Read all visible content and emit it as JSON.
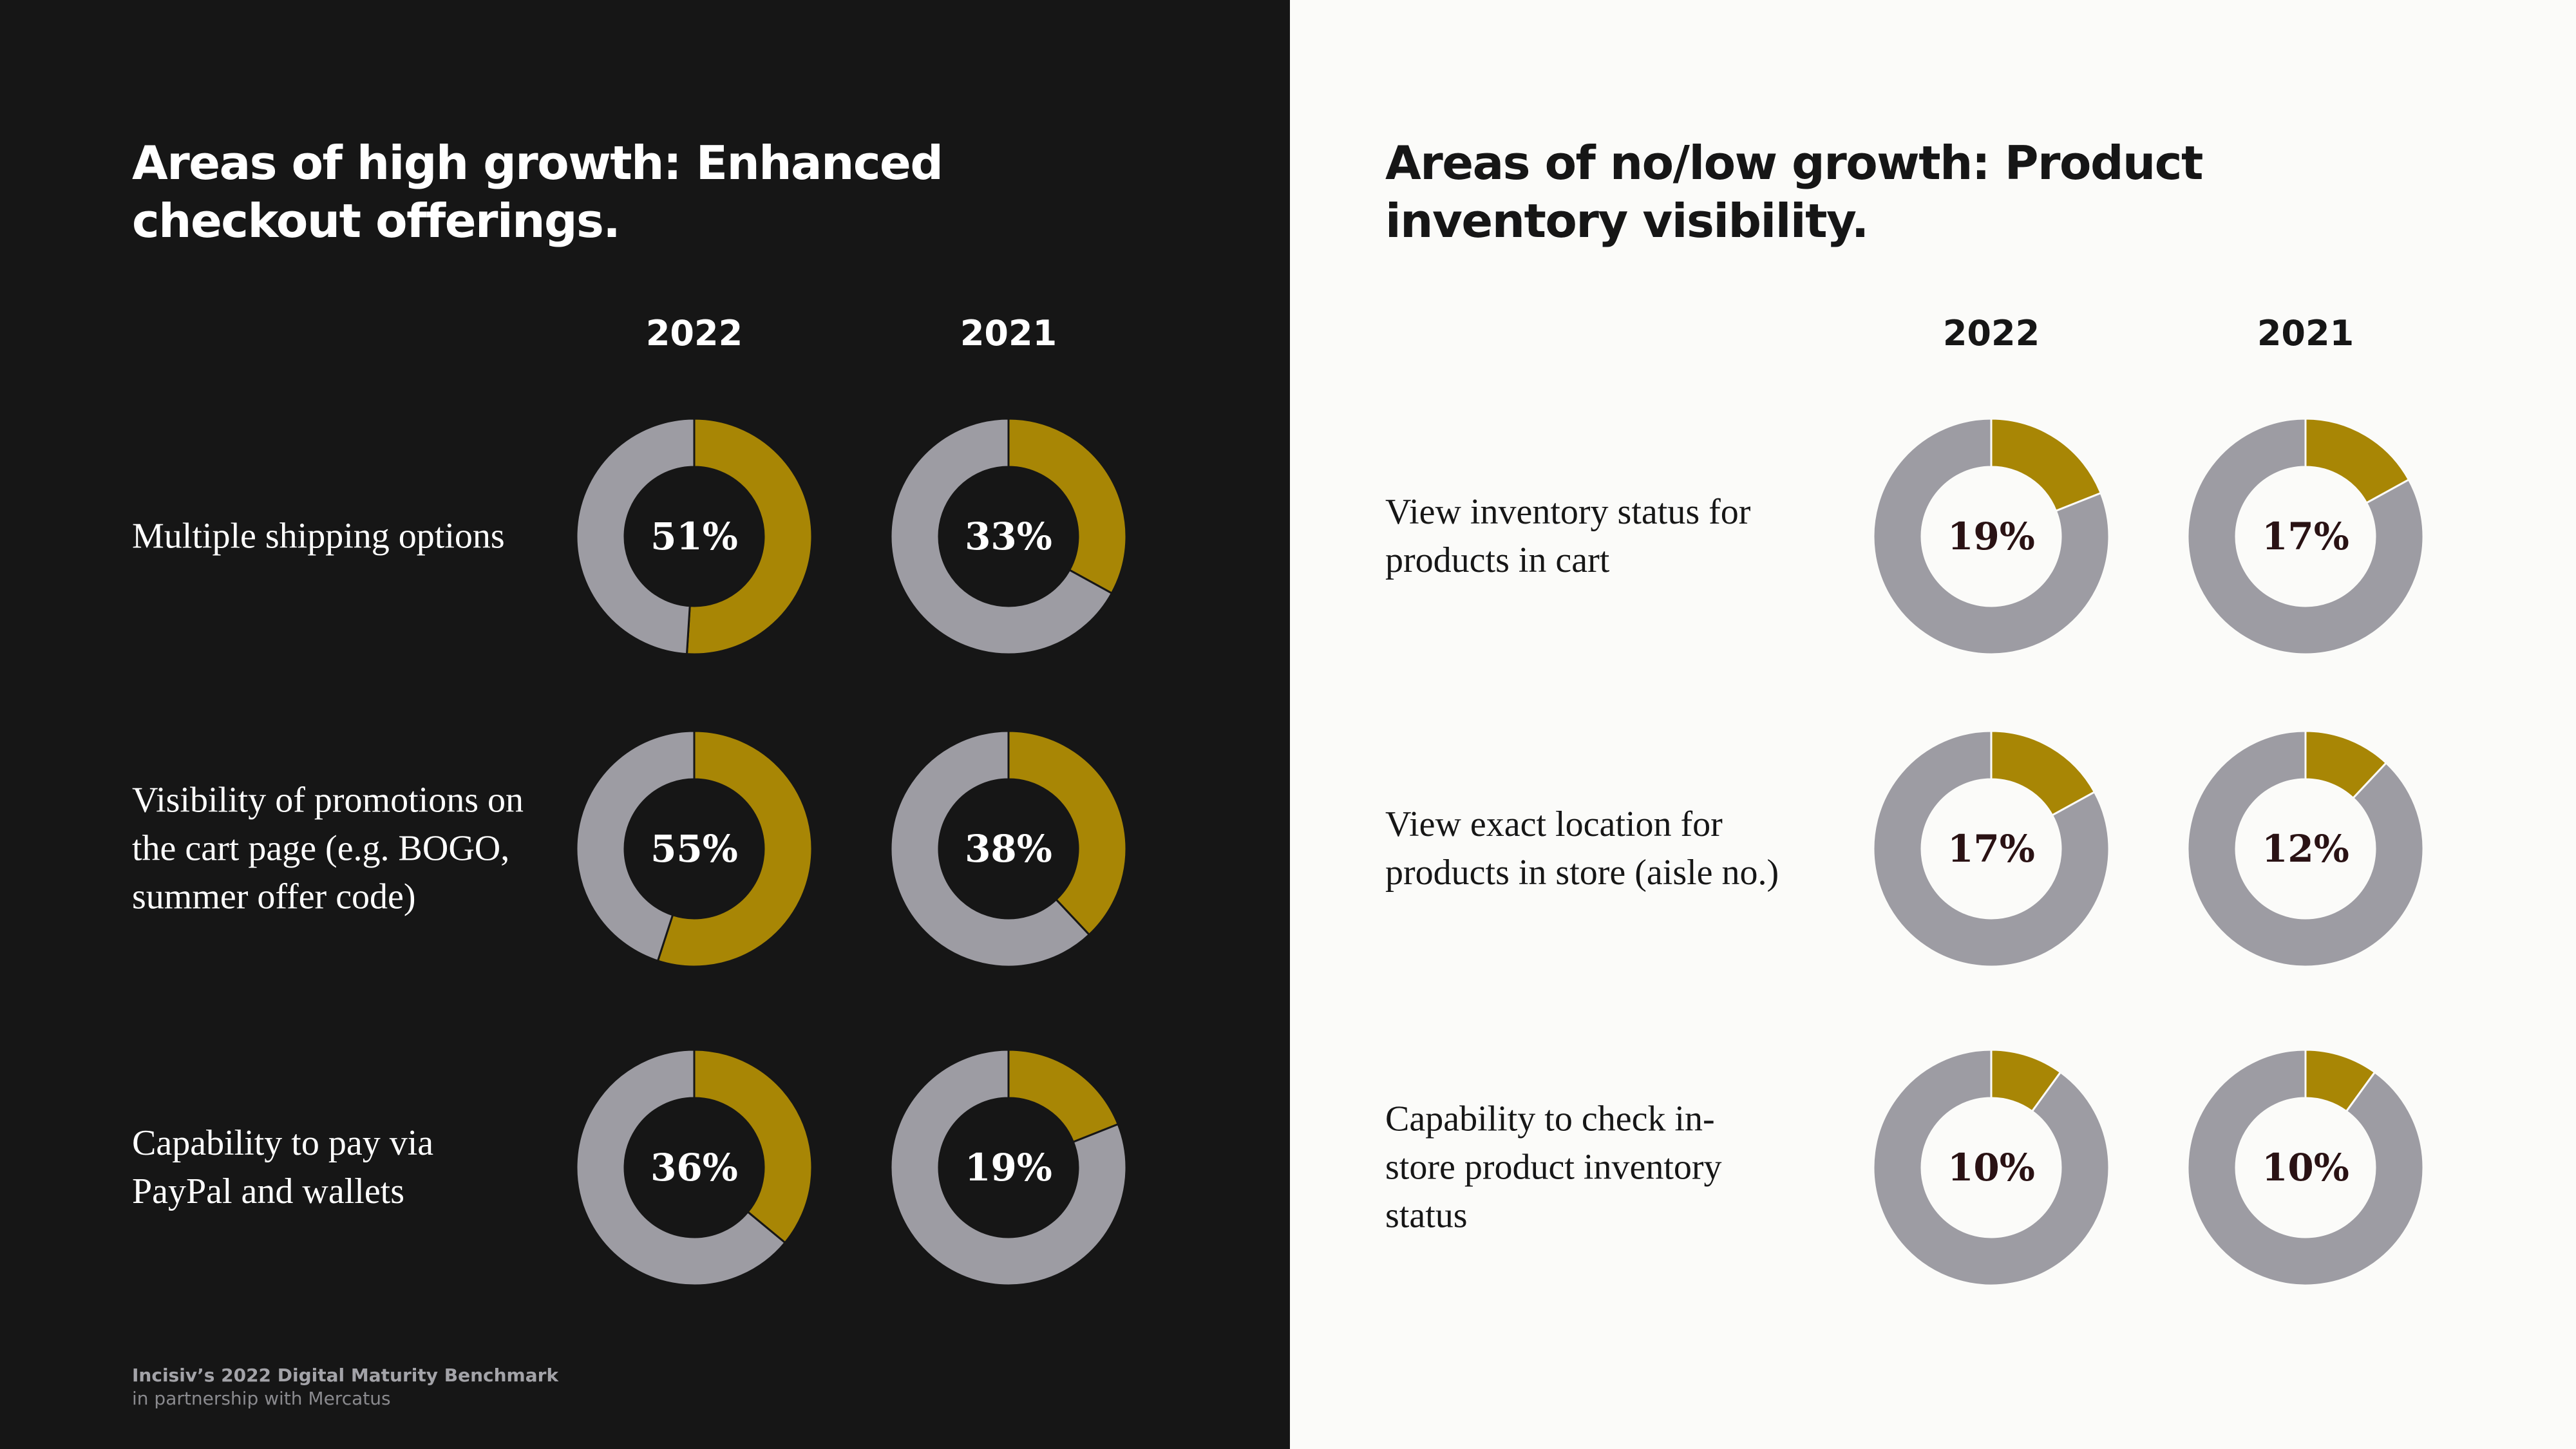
{
  "colors": {
    "accent": "#a88605",
    "ring_gray": "#9d9ca3",
    "left_background": "#161616",
    "right_background": "#fbfbf9"
  },
  "footer": {
    "title": "Incisiv’s 2022 Digital Maturity Benchmark",
    "subtitle": "in partnership with Mercatus"
  },
  "chart_data": [
    {
      "type": "donut",
      "title": "Areas of high growth: Enhanced checkout offerings.",
      "series_names": [
        "2022",
        "2021"
      ],
      "categories": [
        "Multiple shipping options",
        "Visibility of promotions on the cart page (e.g. BOGO, summer offer code)",
        "Capability to pay via PayPal and wallets"
      ],
      "values": {
        "2022": [
          51,
          55,
          36
        ],
        "2021": [
          33,
          38,
          19
        ]
      },
      "value_labels": {
        "2022": [
          "51%",
          "55%",
          "36%"
        ],
        "2021": [
          "33%",
          "38%",
          "19%"
        ]
      }
    },
    {
      "type": "donut",
      "title": "Areas of no/low growth: Product inventory visibility.",
      "series_names": [
        "2022",
        "2021"
      ],
      "categories": [
        "View inventory status for products in cart",
        "View exact location for products in store (aisle no.)",
        "Capability to check in-store product inventory status"
      ],
      "values": {
        "2022": [
          19,
          17,
          10
        ],
        "2021": [
          17,
          12,
          10
        ]
      },
      "value_labels": {
        "2022": [
          "19%",
          "17%",
          "10%"
        ],
        "2021": [
          "17%",
          "12%",
          "10%"
        ]
      }
    }
  ]
}
